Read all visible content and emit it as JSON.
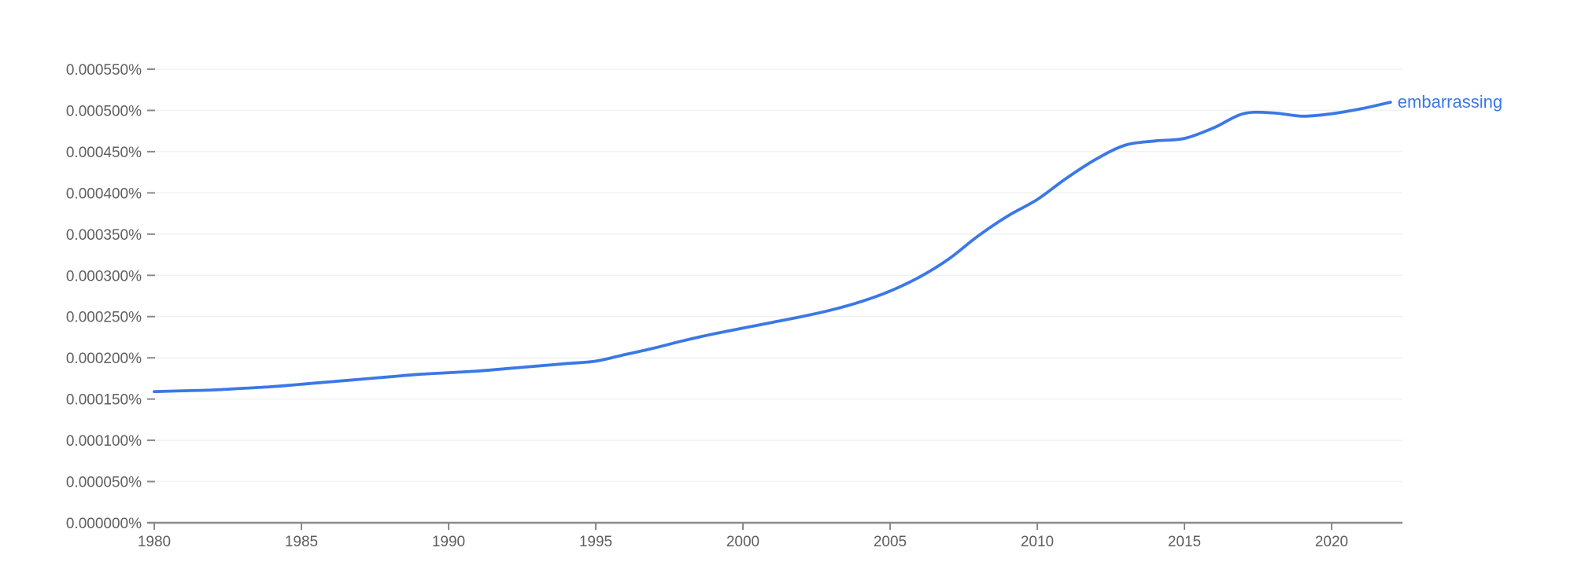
{
  "chart_data": {
    "type": "line",
    "title": "",
    "xlabel": "",
    "ylabel": "",
    "grid": {
      "horizontal": true,
      "vertical": false
    },
    "legend": {
      "position": "end-of-line-inline"
    },
    "x_axis": {
      "range": [
        1980,
        2022.4
      ],
      "tick_years": [
        1980,
        1985,
        1990,
        1995,
        2000,
        2005,
        2010,
        2015,
        2020
      ],
      "tick_labels": [
        "1980",
        "1985",
        "1990",
        "1995",
        "2000",
        "2005",
        "2010",
        "2015",
        "2020"
      ]
    },
    "y_axis": {
      "range": [
        0,
        0.00055
      ],
      "tick_values": [
        0,
        5e-05,
        0.0001,
        0.00015,
        0.0002,
        0.00025,
        0.0003,
        0.00035,
        0.0004,
        0.00045,
        0.0005,
        0.00055
      ],
      "tick_labels": [
        "0.000000%",
        "0.000050%",
        "0.000100%",
        "0.000150%",
        "0.000200%",
        "0.000250%",
        "0.000300%",
        "0.000350%",
        "0.000400%",
        "0.000450%",
        "0.000500%",
        "0.000550%"
      ]
    },
    "x": [
      1980,
      1981,
      1982,
      1983,
      1984,
      1985,
      1986,
      1987,
      1988,
      1989,
      1990,
      1991,
      1992,
      1993,
      1994,
      1995,
      1996,
      1997,
      1998,
      1999,
      2000,
      2001,
      2002,
      2003,
      2004,
      2005,
      2006,
      2007,
      2008,
      2009,
      2010,
      2011,
      2012,
      2013,
      2014,
      2015,
      2016,
      2017,
      2018,
      2019,
      2020,
      2021,
      2022
    ],
    "series": [
      {
        "name": "embarrassing",
        "color": "#3b78e7",
        "values": [
          0.000159,
          0.00016,
          0.000161,
          0.000163,
          0.000165,
          0.000168,
          0.000171,
          0.000174,
          0.000177,
          0.00018,
          0.000182,
          0.000184,
          0.000187,
          0.00019,
          0.000193,
          0.000196,
          0.000204,
          0.000212,
          0.000221,
          0.000229,
          0.000236,
          0.000243,
          0.00025,
          0.000258,
          0.000268,
          0.000281,
          0.000298,
          0.00032,
          0.000348,
          0.000372,
          0.000392,
          0.000418,
          0.000441,
          0.000458,
          0.000463,
          0.000466,
          0.000479,
          0.000496,
          0.000497,
          0.000493,
          0.000496,
          0.000502,
          0.00051
        ]
      }
    ]
  },
  "colors": {
    "line": "#3b78e7",
    "series_label_text": "#3b78e7",
    "axis_line": "#8a8a8a",
    "tick_mark": "#8a8a8a",
    "tick_label_text": "#5f5f5f",
    "gridline": "#f1f1f1",
    "background": "#ffffff"
  }
}
